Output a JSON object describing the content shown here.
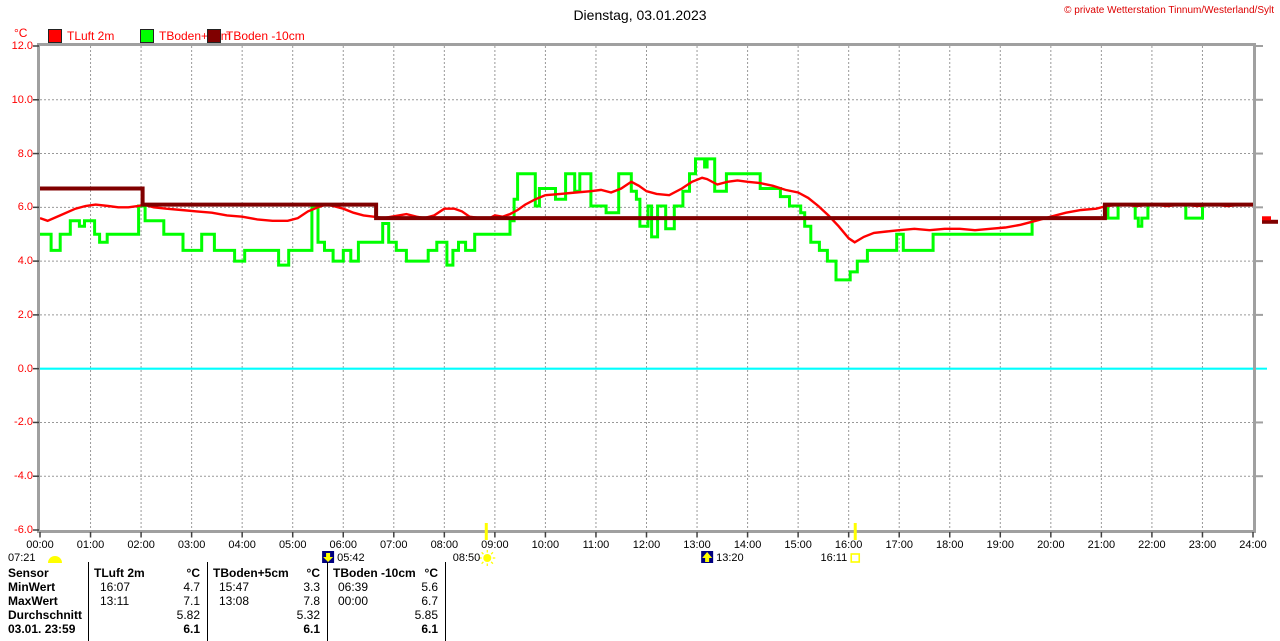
{
  "title": "Dienstag, 03.01.2023",
  "copyright": "© private Wetterstation Tinnum/Westerland/Sylt",
  "unit_label": "°C",
  "legend": [
    {
      "label": "TLuft 2m",
      "color": "#ff0000"
    },
    {
      "label": "TBoden+5cm",
      "color": "#00ff00"
    },
    {
      "label": "TBoden -10cm",
      "color": "#800000"
    }
  ],
  "chart_data": {
    "type": "line",
    "title": "Dienstag, 03.01.2023",
    "ylabel": "°C",
    "ylim": [
      -6.0,
      12.0
    ],
    "xlim_hours": [
      0,
      24
    ],
    "grid": "dashed-gray-1h-2deg",
    "zero_line_color": "#00ffff",
    "y_ticks": [
      12,
      10,
      8,
      6,
      4,
      2,
      0,
      -2,
      -4,
      -6
    ],
    "x_tick_labels": [
      "00:00",
      "01:00",
      "02:00",
      "03:00",
      "04:00",
      "05:00",
      "06:00",
      "07:00",
      "08:00",
      "09:00",
      "10:00",
      "11:00",
      "12:00",
      "13:00",
      "14:00",
      "15:00",
      "16:00",
      "17:00",
      "18:00",
      "19:00",
      "20:00",
      "21:00",
      "22:00",
      "23:00",
      "24:00"
    ],
    "series": [
      {
        "name": "TLuft 2m",
        "color": "#ff0000",
        "style": "line",
        "width": 2.4,
        "points": [
          [
            0,
            5.6
          ],
          [
            0.15,
            5.5
          ],
          [
            0.4,
            5.7
          ],
          [
            0.7,
            5.95
          ],
          [
            0.9,
            6.05
          ],
          [
            1.1,
            6.1
          ],
          [
            1.35,
            6.05
          ],
          [
            1.55,
            6.0
          ],
          [
            1.75,
            6.0
          ],
          [
            1.95,
            6.05
          ],
          [
            2.05,
            6.1
          ],
          [
            2.25,
            6.0
          ],
          [
            2.5,
            5.95
          ],
          [
            2.8,
            5.9
          ],
          [
            3.1,
            5.85
          ],
          [
            3.4,
            5.8
          ],
          [
            3.7,
            5.7
          ],
          [
            4.0,
            5.65
          ],
          [
            4.3,
            5.55
          ],
          [
            4.6,
            5.5
          ],
          [
            4.9,
            5.5
          ],
          [
            5.1,
            5.6
          ],
          [
            5.3,
            5.85
          ],
          [
            5.5,
            6.0
          ],
          [
            5.65,
            6.1
          ],
          [
            5.8,
            6.05
          ],
          [
            6.0,
            5.95
          ],
          [
            6.2,
            5.8
          ],
          [
            6.4,
            5.7
          ],
          [
            6.6,
            5.65
          ],
          [
            6.8,
            5.6
          ],
          [
            7.1,
            5.7
          ],
          [
            7.25,
            5.75
          ],
          [
            7.45,
            5.65
          ],
          [
            7.6,
            5.6
          ],
          [
            7.8,
            5.7
          ],
          [
            8.0,
            5.95
          ],
          [
            8.2,
            5.95
          ],
          [
            8.35,
            5.85
          ],
          [
            8.5,
            5.65
          ],
          [
            8.7,
            5.6
          ],
          [
            8.9,
            5.6
          ],
          [
            9.0,
            5.7
          ],
          [
            9.15,
            5.65
          ],
          [
            9.3,
            5.75
          ],
          [
            9.45,
            5.9
          ],
          [
            9.6,
            6.1
          ],
          [
            9.8,
            6.3
          ],
          [
            10.0,
            6.45
          ],
          [
            10.3,
            6.5
          ],
          [
            10.6,
            6.55
          ],
          [
            10.9,
            6.6
          ],
          [
            11.1,
            6.65
          ],
          [
            11.3,
            6.55
          ],
          [
            11.5,
            6.7
          ],
          [
            11.7,
            6.95
          ],
          [
            11.85,
            6.8
          ],
          [
            12.0,
            6.6
          ],
          [
            12.2,
            6.5
          ],
          [
            12.45,
            6.45
          ],
          [
            12.7,
            6.7
          ],
          [
            12.9,
            6.95
          ],
          [
            13.1,
            7.1
          ],
          [
            13.2,
            7.05
          ],
          [
            13.4,
            6.85
          ],
          [
            13.6,
            6.95
          ],
          [
            13.8,
            7.0
          ],
          [
            14.0,
            6.95
          ],
          [
            14.25,
            6.9
          ],
          [
            14.5,
            6.8
          ],
          [
            14.75,
            6.65
          ],
          [
            15.0,
            6.55
          ],
          [
            15.2,
            6.35
          ],
          [
            15.4,
            6.05
          ],
          [
            15.6,
            5.7
          ],
          [
            15.8,
            5.3
          ],
          [
            16.0,
            4.85
          ],
          [
            16.12,
            4.7
          ],
          [
            16.3,
            4.9
          ],
          [
            16.5,
            5.05
          ],
          [
            16.75,
            5.1
          ],
          [
            17.0,
            5.15
          ],
          [
            17.3,
            5.2
          ],
          [
            17.6,
            5.15
          ],
          [
            17.9,
            5.2
          ],
          [
            18.2,
            5.2
          ],
          [
            18.5,
            5.15
          ],
          [
            18.8,
            5.2
          ],
          [
            19.1,
            5.25
          ],
          [
            19.4,
            5.35
          ],
          [
            19.7,
            5.5
          ],
          [
            20.0,
            5.65
          ],
          [
            20.3,
            5.8
          ],
          [
            20.6,
            5.9
          ],
          [
            20.9,
            5.95
          ],
          [
            21.1,
            6.05
          ],
          [
            21.4,
            6.1
          ],
          [
            21.7,
            6.05
          ],
          [
            22.0,
            6.1
          ],
          [
            22.3,
            6.05
          ],
          [
            22.6,
            6.1
          ],
          [
            22.9,
            6.05
          ],
          [
            23.2,
            6.1
          ],
          [
            23.5,
            6.05
          ],
          [
            23.8,
            6.1
          ],
          [
            24,
            6.1
          ]
        ]
      },
      {
        "name": "TBoden+5cm",
        "color": "#00ff00",
        "style": "step",
        "width": 3,
        "points": [
          [
            0,
            5.0
          ],
          [
            0.22,
            4.4
          ],
          [
            0.4,
            5.0
          ],
          [
            0.6,
            5.5
          ],
          [
            0.78,
            5.3
          ],
          [
            0.88,
            5.5
          ],
          [
            1.08,
            5.0
          ],
          [
            1.18,
            4.7
          ],
          [
            1.33,
            5.0
          ],
          [
            1.95,
            6.05
          ],
          [
            2.08,
            5.5
          ],
          [
            2.45,
            5.0
          ],
          [
            2.83,
            4.4
          ],
          [
            3.2,
            5.0
          ],
          [
            3.45,
            4.4
          ],
          [
            3.85,
            4.0
          ],
          [
            4.05,
            4.4
          ],
          [
            4.72,
            3.85
          ],
          [
            4.92,
            4.4
          ],
          [
            5.38,
            6.0
          ],
          [
            5.5,
            4.7
          ],
          [
            5.63,
            4.4
          ],
          [
            5.8,
            4.0
          ],
          [
            6.0,
            4.4
          ],
          [
            6.15,
            4.0
          ],
          [
            6.3,
            4.7
          ],
          [
            6.78,
            5.4
          ],
          [
            6.9,
            4.7
          ],
          [
            7.05,
            4.4
          ],
          [
            7.25,
            4.0
          ],
          [
            7.68,
            4.4
          ],
          [
            7.85,
            4.7
          ],
          [
            8.05,
            3.85
          ],
          [
            8.17,
            4.4
          ],
          [
            8.28,
            4.7
          ],
          [
            8.42,
            4.4
          ],
          [
            8.6,
            5.0
          ],
          [
            9.3,
            5.5
          ],
          [
            9.38,
            6.3
          ],
          [
            9.45,
            7.25
          ],
          [
            9.8,
            6.05
          ],
          [
            9.88,
            6.7
          ],
          [
            10.2,
            6.3
          ],
          [
            10.4,
            7.25
          ],
          [
            10.58,
            6.6
          ],
          [
            10.68,
            7.25
          ],
          [
            10.9,
            6.05
          ],
          [
            11.2,
            5.8
          ],
          [
            11.45,
            7.25
          ],
          [
            11.7,
            6.6
          ],
          [
            11.8,
            6.3
          ],
          [
            11.87,
            5.3
          ],
          [
            12.03,
            6.05
          ],
          [
            12.1,
            4.9
          ],
          [
            12.22,
            6.05
          ],
          [
            12.38,
            5.2
          ],
          [
            12.55,
            6.05
          ],
          [
            12.72,
            6.6
          ],
          [
            12.85,
            7.25
          ],
          [
            12.97,
            7.8
          ],
          [
            13.15,
            7.5
          ],
          [
            13.2,
            7.8
          ],
          [
            13.35,
            6.6
          ],
          [
            13.58,
            7.25
          ],
          [
            14.25,
            6.7
          ],
          [
            14.65,
            6.4
          ],
          [
            14.83,
            6.05
          ],
          [
            15.05,
            5.8
          ],
          [
            15.13,
            5.3
          ],
          [
            15.25,
            4.7
          ],
          [
            15.42,
            4.4
          ],
          [
            15.58,
            4.0
          ],
          [
            15.75,
            3.3
          ],
          [
            16.03,
            3.6
          ],
          [
            16.17,
            4.0
          ],
          [
            16.37,
            4.4
          ],
          [
            16.95,
            5.0
          ],
          [
            17.08,
            4.4
          ],
          [
            17.67,
            5.0
          ],
          [
            19.63,
            5.6
          ],
          [
            21.08,
            6.1
          ],
          [
            21.13,
            5.6
          ],
          [
            21.33,
            6.1
          ],
          [
            21.67,
            5.6
          ],
          [
            21.73,
            5.3
          ],
          [
            21.8,
            5.6
          ],
          [
            21.92,
            6.1
          ],
          [
            22.67,
            5.6
          ],
          [
            23.0,
            6.1
          ],
          [
            24,
            6.1
          ]
        ]
      },
      {
        "name": "TBoden -10cm",
        "color": "#800000",
        "style": "step",
        "width": 4,
        "points": [
          [
            0,
            6.7
          ],
          [
            2.03,
            6.1
          ],
          [
            6.65,
            5.6
          ],
          [
            21.07,
            6.1
          ],
          [
            24,
            6.1
          ]
        ]
      }
    ],
    "markers": [
      {
        "time_label": "07:21",
        "icon": "dawn",
        "placement": "corner"
      },
      {
        "time_label": "05:42",
        "hour": 5.7,
        "icon": "moonset"
      },
      {
        "time_label": "08:50",
        "hour": 8.83,
        "icon": "sunrise",
        "axis_tick": true
      },
      {
        "time_label": "13:20",
        "hour": 13.2,
        "icon": "moonrise"
      },
      {
        "time_label": "16:11",
        "hour": 16.13,
        "icon": "sunset",
        "axis_tick": true
      }
    ],
    "right_edge_marks": {
      "tick_levels": [
        12,
        10,
        8,
        6,
        4,
        2,
        -2,
        -4
      ],
      "zero_level": 0,
      "value_marker_level": 5.5
    }
  },
  "table": {
    "header": {
      "label": "Sensor",
      "columns": [
        {
          "name": "TLuft 2m",
          "unit": "°C"
        },
        {
          "name": "TBoden+5cm",
          "unit": "°C"
        },
        {
          "name": "TBoden -10cm",
          "unit": "°C"
        }
      ]
    },
    "rows": [
      {
        "label": "MinWert",
        "bold_values": false,
        "cells": [
          {
            "time": "16:07",
            "value": "4.7"
          },
          {
            "time": "15:47",
            "value": "3.3"
          },
          {
            "time": "06:39",
            "value": "5.6"
          }
        ]
      },
      {
        "label": "MaxWert",
        "bold_values": false,
        "cells": [
          {
            "time": "13:11",
            "value": "7.1"
          },
          {
            "time": "13:08",
            "value": "7.8"
          },
          {
            "time": "00:00",
            "value": "6.7"
          }
        ]
      },
      {
        "label": "Durchschnitt",
        "bold_values": false,
        "cells": [
          {
            "time": "",
            "value": "5.82"
          },
          {
            "time": "",
            "value": "5.32"
          },
          {
            "time": "",
            "value": "5.85"
          }
        ]
      },
      {
        "label": "03.01. 23:59",
        "bold_values": true,
        "cells": [
          {
            "time": "",
            "value": "6.1"
          },
          {
            "time": "",
            "value": "6.1"
          },
          {
            "time": "",
            "value": "6.1"
          }
        ]
      }
    ]
  }
}
